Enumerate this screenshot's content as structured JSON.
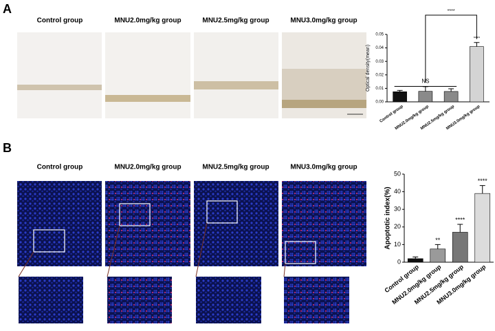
{
  "panels": [
    {
      "label": "A",
      "columns": [
        "Control group",
        "MNU2.0mg/kg group",
        "MNU2.5mg/kg group",
        "MNU3.0mg/kg group"
      ]
    },
    {
      "label": "B",
      "columns": [
        "Control group",
        "MNU2.0mg/kg group",
        "MNU2.5mg/kg group",
        "MNU3.0mg/kg group"
      ]
    }
  ],
  "chart_data": [
    {
      "type": "bar",
      "y_label": "Optical density(mean)",
      "categories": [
        "Control group",
        "MNU2.0mg/kg group",
        "MNU2.5mg/kg group",
        "MNU3.0mg/kg group"
      ],
      "values": [
        0.0075,
        0.0078,
        0.0077,
        0.041
      ],
      "errors": [
        0.001,
        0.0035,
        0.002,
        0.003
      ],
      "colors": [
        "#111111",
        "#8a8a8a",
        "#8a8a8a",
        "#d4d4d4"
      ],
      "bar_labels": [
        null,
        null,
        null,
        "****"
      ],
      "annotations": [
        "NS",
        "****"
      ],
      "ylim": [
        0,
        0.05
      ],
      "yticks": [
        {
          "value": 0,
          "label": "0.00"
        },
        0.01,
        0.02,
        0.03,
        0.04,
        0.05
      ]
    },
    {
      "type": "bar",
      "y_label": "Apoptotic index(%)",
      "categories": [
        "Control group",
        "MNU2.0mg/kg group",
        "MNU2.5mg/kg group",
        "MNU3.0mg/kg group"
      ],
      "values": [
        2,
        7.5,
        17,
        39
      ],
      "errors": [
        1,
        2.5,
        4.5,
        4.5
      ],
      "colors": [
        "#111111",
        "#9a9a9a",
        "#777777",
        "#dcdcdc"
      ],
      "bar_labels": [
        null,
        "**",
        "****",
        "****"
      ],
      "ylim": [
        0,
        50
      ],
      "yticks": [
        0,
        10,
        20,
        30,
        40,
        50
      ]
    }
  ]
}
